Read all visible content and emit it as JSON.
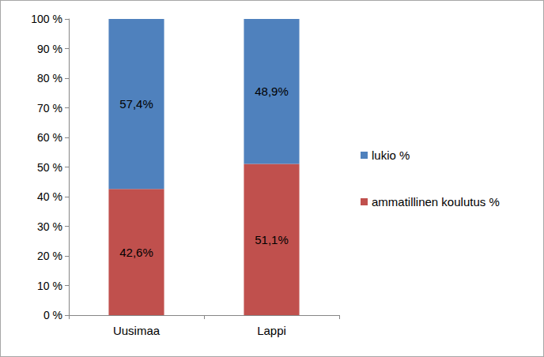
{
  "chart_data": {
    "type": "bar",
    "stacked": true,
    "data_labels": true,
    "grid": false,
    "legend": "right",
    "categories": [
      "Uusimaa",
      "Lappi"
    ],
    "series": [
      {
        "name": "ammatillinen koulutus %",
        "color": "#c0504d",
        "values": [
          42.6,
          51.1
        ],
        "value_labels": [
          "42,6%",
          "51,1%"
        ]
      },
      {
        "name": "lukio %",
        "color": "#4f81bd",
        "values": [
          57.4,
          48.9
        ],
        "value_labels": [
          "57,4%",
          "48,9%"
        ]
      }
    ],
    "ylim": [
      0,
      100
    ],
    "yticks": [
      {
        "value": 0,
        "label": "0 %"
      },
      {
        "value": 10,
        "label": "10 %"
      },
      {
        "value": 20,
        "label": "20 %"
      },
      {
        "value": 30,
        "label": "30 %"
      },
      {
        "value": 40,
        "label": "40 %"
      },
      {
        "value": 50,
        "label": "50 %"
      },
      {
        "value": 60,
        "label": "60 %"
      },
      {
        "value": 70,
        "label": "70 %"
      },
      {
        "value": 80,
        "label": "80 %"
      },
      {
        "value": 90,
        "label": "90 %"
      },
      {
        "value": 100,
        "label": "100 %"
      }
    ]
  }
}
